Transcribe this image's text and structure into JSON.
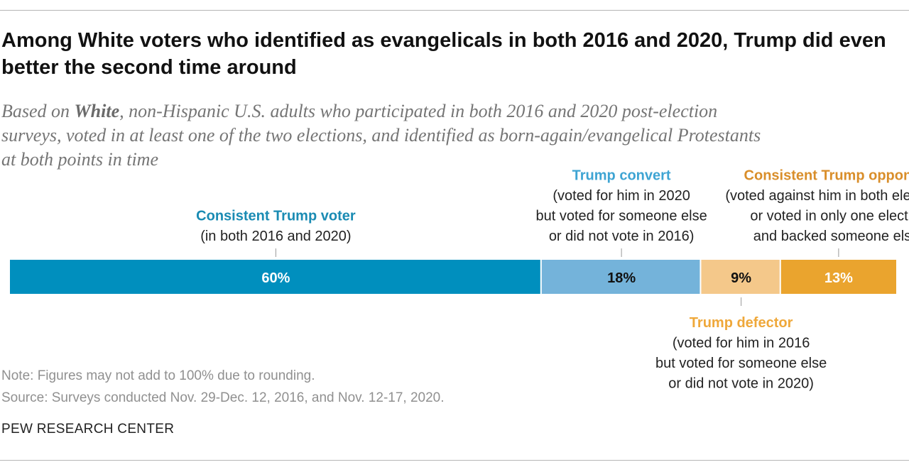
{
  "title": "Among White voters who identified as evangelicals in both 2016 and 2020, Trump did even better the second time around",
  "subtitle": {
    "line1_pre": "Based on ",
    "line1_bold": "White",
    "line1_post": ", non-Hispanic U.S. adults who participated in both 2016 and 2020 post-election",
    "line2": "surveys, voted in at least one of the two elections, and identified as born-again/evangelical Protestants",
    "line3": "at both points in time"
  },
  "chart_data": {
    "type": "bar",
    "orientation": "horizontal-stacked",
    "series": [
      {
        "name": "Consistent Trump voter",
        "value": 60,
        "label": "60%",
        "color": "#008fbe",
        "label_color": "#ffffff",
        "note": [
          "(in both 2016 and 2020)"
        ],
        "name_color": "#1a8bb3",
        "annotation_position": "above"
      },
      {
        "name": "Trump convert",
        "value": 18,
        "label": "18%",
        "color": "#74b3da",
        "label_color": "#111111",
        "note": [
          "(voted for him in 2020",
          "but voted for someone else",
          "or did not vote in 2016)"
        ],
        "name_color": "#3ea4d3",
        "annotation_position": "above"
      },
      {
        "name": "Trump defector",
        "value": 9,
        "label": "9%",
        "color": "#f4c88a",
        "label_color": "#111111",
        "note": [
          "(voted for him in 2016",
          "but voted for someone else",
          "or did not vote in 2020)"
        ],
        "name_color": "#efa83a",
        "annotation_position": "below"
      },
      {
        "name": "Consistent Trump opponent",
        "value": 13,
        "label": "13%",
        "color": "#eaa42e",
        "label_color": "#ffffff",
        "note": [
          "(voted against him in both elections,",
          "or voted in only one election",
          "and backed someone else)"
        ],
        "name_color": "#d98e2a",
        "annotation_position": "above"
      }
    ]
  },
  "notes": {
    "note": "Note: Figures may not add to 100% due to rounding.",
    "source": "Source: Surveys conducted Nov. 29-Dec. 12, 2016, and Nov. 12-17, 2020."
  },
  "credit": "PEW RESEARCH CENTER"
}
